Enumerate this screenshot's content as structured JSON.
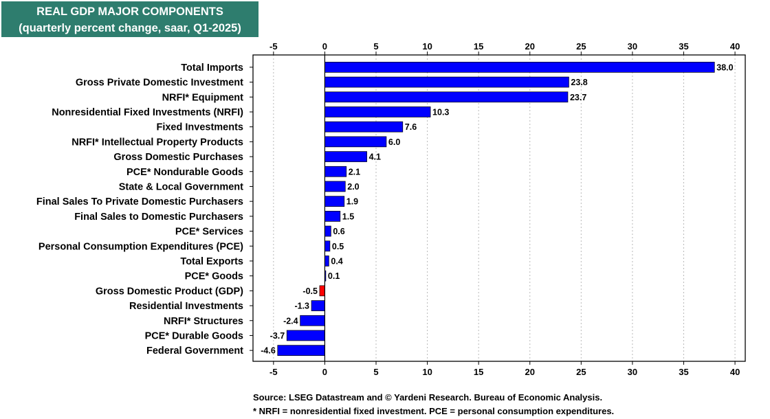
{
  "title": {
    "line1": "REAL GDP MAJOR COMPONENTS",
    "line2": "(quarterly percent change, saar, Q1-2025)"
  },
  "footnotes": {
    "source": "Source: LSEG Datastream and © Yardeni Research. Bureau of Economic Analysis.",
    "abbrev": "* NRFI = nonresidential fixed investment. PCE = personal consumption expenditures."
  },
  "colors": {
    "title_bg": "#2e7d6e",
    "bar": "#0000ff",
    "highlight": "#ff0000"
  },
  "chart_data": {
    "type": "bar",
    "orientation": "horizontal",
    "xlim": [
      -7,
      41
    ],
    "ticks": [
      -5,
      0,
      5,
      10,
      15,
      20,
      25,
      30,
      35,
      40
    ],
    "grid": true,
    "categories": [
      "Total Imports",
      "Gross Private Domestic Investment",
      "NRFI* Equipment",
      "Nonresidential Fixed Investments (NRFI)",
      "Fixed Investments",
      "NRFI* Intellectual Property Products",
      "Gross Domestic Purchases",
      "PCE* Nondurable Goods",
      "State & Local Government",
      "Final Sales To Private Domestic Purchasers",
      "Final Sales to Domestic Purchasers",
      "PCE* Services",
      "Personal Consumption Expenditures (PCE)",
      "Total Exports",
      "PCE* Goods",
      "Gross Domestic Product (GDP)",
      "Residential Investments",
      "NRFI* Structures",
      "PCE* Durable Goods",
      "Federal Government"
    ],
    "values": [
      38.0,
      23.8,
      23.7,
      10.3,
      7.6,
      6.0,
      4.1,
      2.1,
      2.0,
      1.9,
      1.5,
      0.6,
      0.5,
      0.4,
      0.1,
      -0.5,
      -1.3,
      -2.4,
      -3.7,
      -4.6
    ],
    "labels": [
      "38.0",
      "23.8",
      "23.7",
      "10.3",
      "7.6",
      "6.0",
      "4.1",
      "2.1",
      "2.0",
      "1.9",
      "1.5",
      "0.6",
      "0.5",
      "0.4",
      "0.1",
      "-0.5",
      "-1.3",
      "-2.4",
      "-3.7",
      "-4.6"
    ],
    "highlight_category": "Gross Domestic Product (GDP)"
  }
}
